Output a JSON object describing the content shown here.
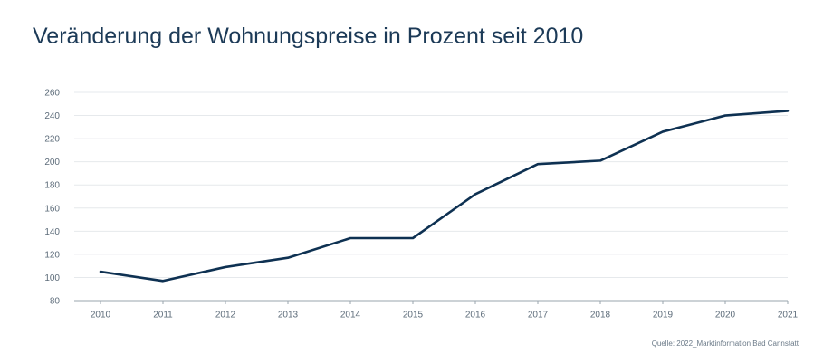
{
  "chart_data": {
    "type": "line",
    "title": "Veränderung der Wohnungspreise in Prozent seit 2010",
    "xlabel": "",
    "ylabel": "",
    "x": [
      "2010",
      "2011",
      "2012",
      "2013",
      "2014",
      "2015",
      "2016",
      "2017",
      "2018",
      "2019",
      "2020",
      "2021"
    ],
    "series": [
      {
        "values": [
          105,
          97,
          109,
          117,
          134,
          134,
          172,
          198,
          201,
          226,
          240,
          244
        ]
      }
    ],
    "ylim": [
      80,
      260
    ],
    "yticks": [
      80,
      100,
      120,
      140,
      160,
      180,
      200,
      220,
      240,
      260
    ],
    "grid": true,
    "legend": "none",
    "colors": {
      "line": "#0e3152",
      "grid": "#e6e9ec",
      "axis": "#9aa4ad"
    }
  },
  "source": "Quelle: 2022_Marktinformation Bad Cannstatt"
}
